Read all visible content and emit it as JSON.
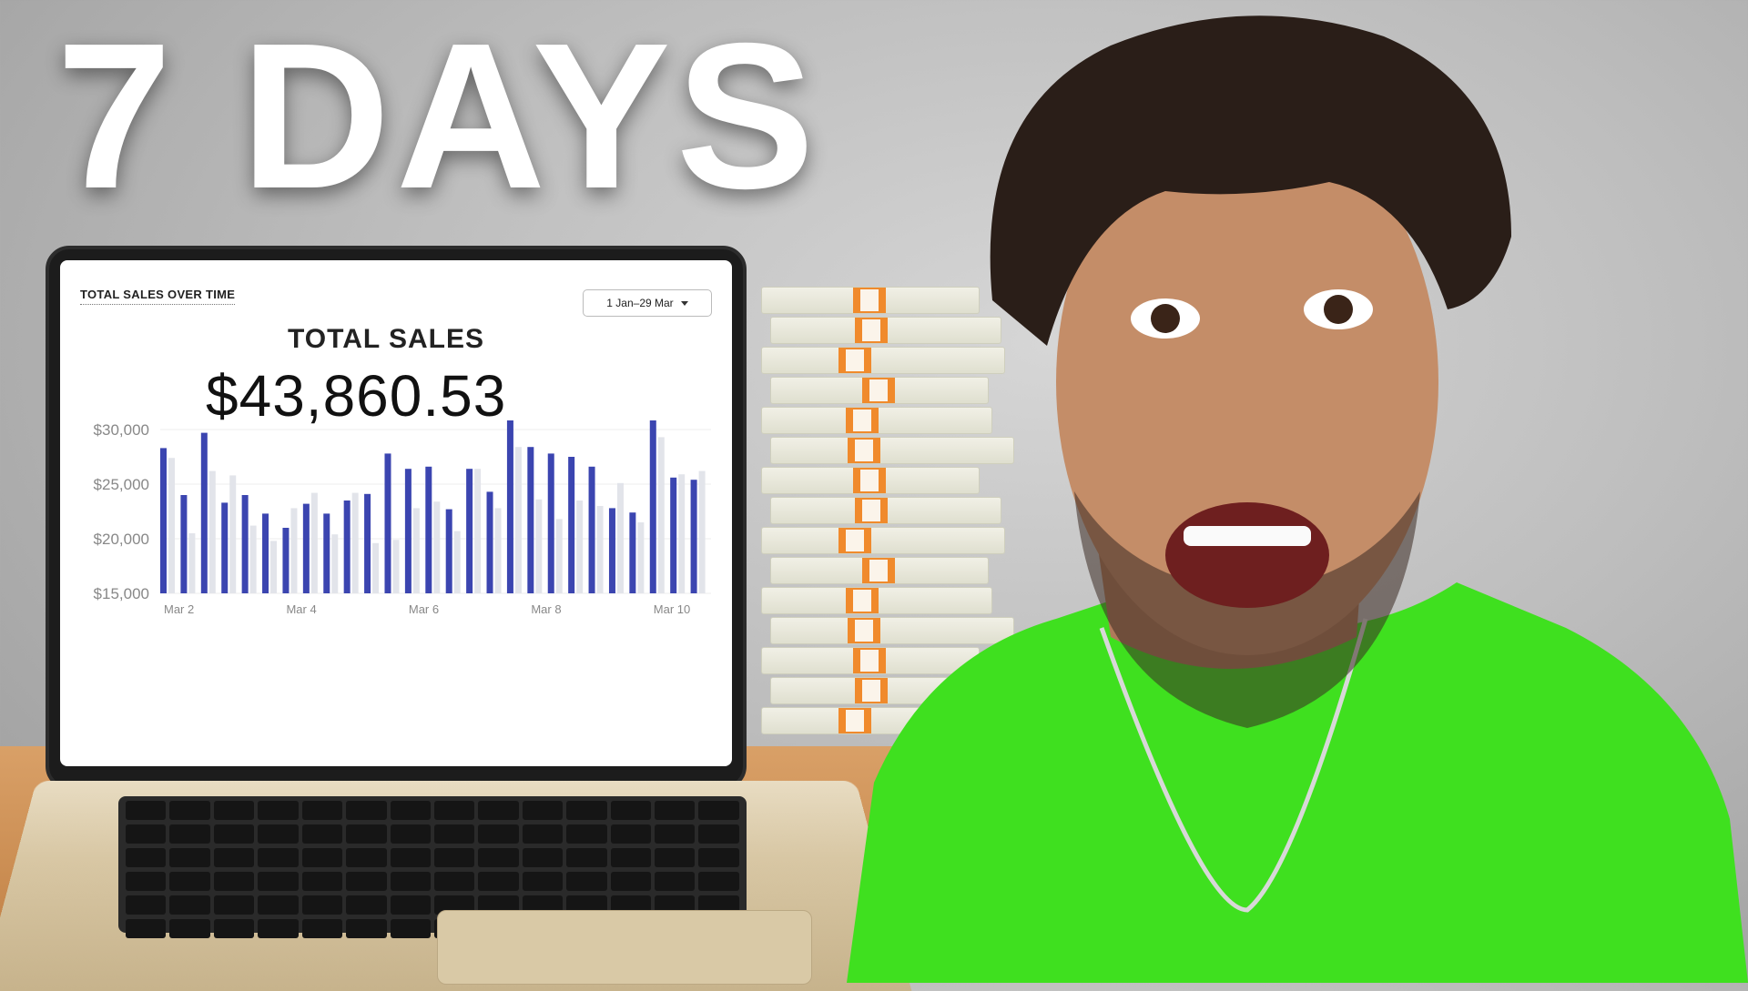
{
  "headline": "7 DAYS",
  "screen": {
    "section_label": "TOTAL SALES OVER TIME",
    "date_range": "1 Jan–29 Mar",
    "total_label": "TOTAL SALES",
    "total_value": "$43,860.53"
  },
  "colors": {
    "bar_primary": "#3b45b0",
    "bar_secondary": "#e2e4ea",
    "shirt": "#3fe01f",
    "band": "#f08a2c"
  },
  "chart_data": {
    "type": "bar",
    "title": "",
    "xlabel": "",
    "ylabel": "",
    "ylim": [
      15000,
      30000
    ],
    "y_ticks": [
      "$30,000",
      "$25,000",
      "$20,000",
      "$15,000"
    ],
    "x_tick_labels": [
      "Mar 2",
      "Mar 4",
      "Mar 6",
      "Mar 8",
      "Mar 10"
    ],
    "grid": true,
    "series": [
      {
        "values": [
          28300,
          24000,
          29700,
          23300,
          24000,
          22300,
          21000,
          23200,
          22300,
          23500,
          24100,
          27800,
          26400,
          26600,
          22700,
          26400,
          24300,
          31700,
          28400,
          27800,
          27500,
          26600,
          22800,
          22400,
          31100,
          25600,
          25400
        ]
      },
      {
        "values": [
          27400,
          20500,
          26200,
          25800,
          21200,
          19800,
          22800,
          24200,
          20400,
          24200,
          19600,
          19900,
          22800,
          23400,
          20700,
          26400,
          22800,
          28400,
          23600,
          21800,
          23500,
          23000,
          25100,
          21500,
          29300,
          25900,
          26200
        ]
      }
    ]
  }
}
